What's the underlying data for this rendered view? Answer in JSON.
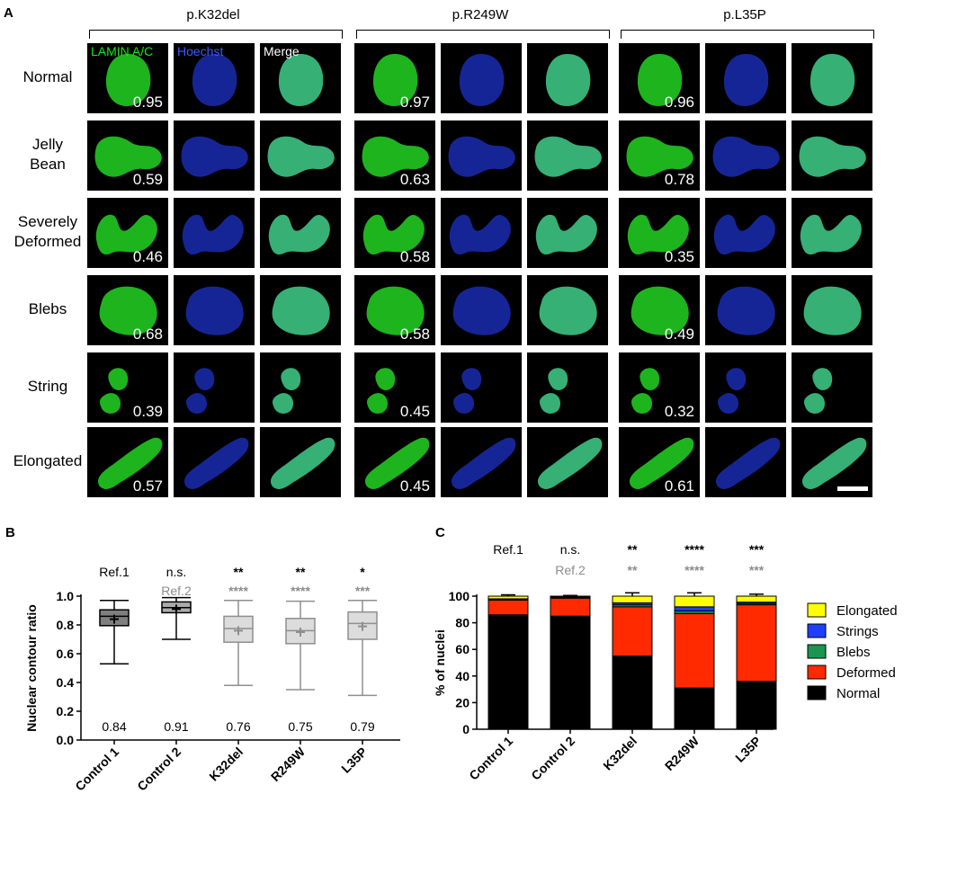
{
  "panel_letters": {
    "a": "A",
    "b": "B",
    "c": "C"
  },
  "micrograph_panel": {
    "groups": [
      "p.K32del",
      "p.R249W",
      "p.L35P"
    ],
    "channels": [
      "LAMIN A/C",
      "Hoechst",
      "Merge"
    ],
    "channel_colors": {
      "lamin": "#19e619",
      "hoechst": "#3a5bff",
      "merge": "#ffffff"
    },
    "rows": [
      {
        "label": [
          "Normal"
        ],
        "ratios": [
          "0.95",
          "0.97",
          "0.96"
        ]
      },
      {
        "label": [
          "Jelly",
          "Bean"
        ],
        "ratios": [
          "0.59",
          "0.63",
          "0.78"
        ]
      },
      {
        "label": [
          "Severely",
          "Deformed"
        ],
        "ratios": [
          "0.46",
          "0.58",
          "0.35"
        ]
      },
      {
        "label": [
          "Blebs"
        ],
        "ratios": [
          "0.68",
          "0.58",
          "0.49"
        ]
      },
      {
        "label": [
          "String"
        ],
        "ratios": [
          "0.39",
          "0.45",
          "0.32"
        ]
      },
      {
        "label": [
          "Elongated"
        ],
        "ratios": [
          "0.57",
          "0.45",
          "0.61"
        ]
      }
    ]
  },
  "chart_data": [
    {
      "type": "box",
      "ylabel": "Nuclear contour ratio",
      "ylim": [
        0.0,
        1.0
      ],
      "yticks": [
        "0.0",
        "0.2",
        "0.4",
        "0.6",
        "0.8",
        "1.0"
      ],
      "categories": [
        "Control 1",
        "Control 2",
        "K32del",
        "R249W",
        "L35P"
      ],
      "boxes": [
        {
          "min": 0.53,
          "q1": 0.795,
          "median": 0.86,
          "q3": 0.905,
          "max": 0.97,
          "mean": 0.84,
          "fill": "#7f7f7f",
          "stroke": "#000000"
        },
        {
          "min": 0.7,
          "q1": 0.885,
          "median": 0.92,
          "q3": 0.96,
          "max": 0.99,
          "mean": 0.91,
          "fill": "#ababab",
          "stroke": "#000000"
        },
        {
          "min": 0.38,
          "q1": 0.68,
          "median": 0.775,
          "q3": 0.86,
          "max": 0.97,
          "mean": 0.76,
          "fill": "#dcdcdc",
          "stroke": "#8f8f8f"
        },
        {
          "min": 0.35,
          "q1": 0.67,
          "median": 0.76,
          "q3": 0.845,
          "max": 0.965,
          "mean": 0.75,
          "fill": "#dcdcdc",
          "stroke": "#8f8f8f"
        },
        {
          "min": 0.31,
          "q1": 0.7,
          "median": 0.81,
          "q3": 0.89,
          "max": 0.97,
          "mean": 0.79,
          "fill": "#dcdcdc",
          "stroke": "#8f8f8f"
        }
      ],
      "mean_labels": [
        "0.84",
        "0.91",
        "0.76",
        "0.75",
        "0.79"
      ],
      "sig_row1": [
        "Ref.1",
        "n.s.",
        "**",
        "**",
        "*"
      ],
      "sig_row2": [
        "",
        "Ref.2",
        "****",
        "****",
        "***"
      ]
    },
    {
      "type": "stacked-bar",
      "ylabel": "% of nuclei",
      "ylim": [
        0,
        100
      ],
      "yticks": [
        "0",
        "20",
        "40",
        "60",
        "80",
        "100"
      ],
      "categories": [
        "Control 1",
        "Control 2",
        "K32del",
        "R249W",
        "L35P"
      ],
      "series": [
        {
          "name": "Normal",
          "color": "#000000",
          "values": [
            86,
            85,
            55,
            31,
            36
          ],
          "errors": [
            5,
            1.5,
            12,
            8,
            6
          ]
        },
        {
          "name": "Deformed",
          "color": "#ff2a00",
          "values": [
            11,
            13.5,
            37,
            56,
            57.5
          ],
          "errors": [
            0,
            0,
            0,
            0,
            0
          ]
        },
        {
          "name": "Blebs",
          "color": "#1a9650",
          "values": [
            0.5,
            0.5,
            1.5,
            2,
            1
          ],
          "errors": [
            0,
            0,
            0,
            0,
            0
          ]
        },
        {
          "name": "Strings",
          "color": "#1f3fff",
          "values": [
            0.5,
            0.5,
            1.5,
            3,
            1
          ],
          "errors": [
            0,
            0,
            1,
            1,
            1
          ]
        },
        {
          "name": "Elongated",
          "color": "#ffff00",
          "values": [
            2,
            0.5,
            5,
            8,
            4.5
          ],
          "errors": [
            1,
            0.5,
            2.5,
            2.5,
            1.5
          ]
        }
      ],
      "legend": [
        "Elongated",
        "Strings",
        "Blebs",
        "Deformed",
        "Normal"
      ],
      "legend_position": "right",
      "sig_row1": [
        "Ref.1",
        "n.s.",
        "**",
        "****",
        "***"
      ],
      "sig_row2": [
        "",
        "Ref.2",
        "**",
        "****",
        "***"
      ]
    }
  ]
}
